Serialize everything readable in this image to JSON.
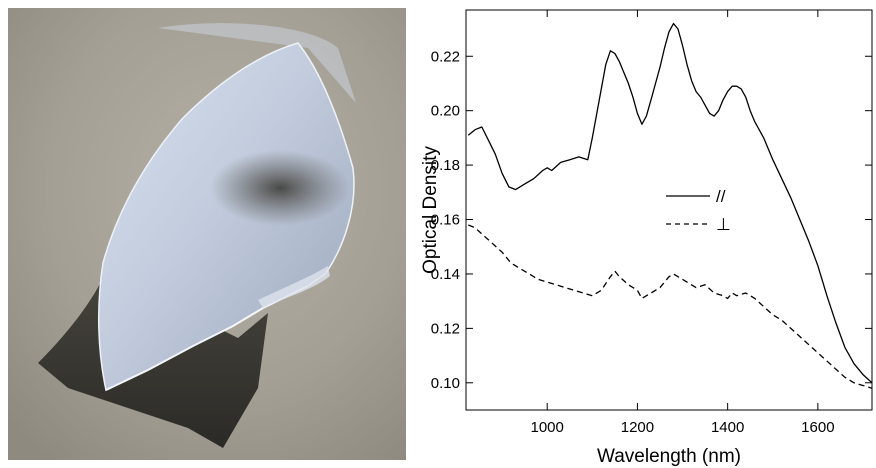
{
  "photo": {
    "subject": "thin translucent film peeling off a dark substrate"
  },
  "chart_data": {
    "type": "line",
    "title": "",
    "xlabel": "Wavelength (nm)",
    "ylabel": "Optical Density",
    "xlim": [
      820,
      1720
    ],
    "ylim": [
      0.09,
      0.237
    ],
    "xticks": [
      1000,
      1200,
      1400,
      1600
    ],
    "xtick_labels": [
      "1000",
      "1200",
      "1400",
      "1600"
    ],
    "yticks": [
      0.1,
      0.12,
      0.14,
      0.16,
      0.18,
      0.2,
      0.22
    ],
    "ytick_labels": [
      "0.10",
      "0.12",
      "0.14",
      "0.16",
      "0.18",
      "0.20",
      "0.22"
    ],
    "grid": false,
    "legend_position": "center-right",
    "series": [
      {
        "name": "//",
        "style": "solid",
        "color": "#000000",
        "x": [
          825,
          840,
          855,
          870,
          885,
          900,
          915,
          930,
          950,
          970,
          990,
          1000,
          1010,
          1030,
          1050,
          1070,
          1090,
          1100,
          1110,
          1120,
          1130,
          1140,
          1150,
          1160,
          1170,
          1180,
          1190,
          1200,
          1210,
          1220,
          1230,
          1240,
          1250,
          1260,
          1270,
          1280,
          1290,
          1300,
          1310,
          1320,
          1330,
          1340,
          1350,
          1360,
          1370,
          1380,
          1390,
          1400,
          1410,
          1420,
          1430,
          1440,
          1450,
          1460,
          1480,
          1500,
          1520,
          1540,
          1560,
          1580,
          1600,
          1620,
          1640,
          1660,
          1680,
          1700,
          1720
        ],
        "y": [
          0.191,
          0.193,
          0.194,
          0.189,
          0.184,
          0.177,
          0.172,
          0.171,
          0.173,
          0.175,
          0.178,
          0.179,
          0.178,
          0.181,
          0.182,
          0.183,
          0.182,
          0.19,
          0.199,
          0.208,
          0.217,
          0.222,
          0.221,
          0.218,
          0.214,
          0.21,
          0.205,
          0.199,
          0.195,
          0.198,
          0.204,
          0.21,
          0.216,
          0.223,
          0.229,
          0.232,
          0.23,
          0.224,
          0.217,
          0.211,
          0.207,
          0.205,
          0.202,
          0.199,
          0.198,
          0.2,
          0.204,
          0.207,
          0.209,
          0.209,
          0.208,
          0.205,
          0.2,
          0.196,
          0.19,
          0.182,
          0.175,
          0.168,
          0.16,
          0.152,
          0.143,
          0.132,
          0.122,
          0.113,
          0.107,
          0.103,
          0.1
        ]
      },
      {
        "name": "⊥",
        "style": "dashed",
        "color": "#000000",
        "x": [
          825,
          840,
          860,
          880,
          900,
          920,
          940,
          960,
          980,
          1000,
          1020,
          1040,
          1060,
          1080,
          1100,
          1120,
          1140,
          1150,
          1160,
          1180,
          1200,
          1210,
          1230,
          1250,
          1270,
          1280,
          1290,
          1310,
          1330,
          1350,
          1370,
          1390,
          1400,
          1410,
          1420,
          1440,
          1460,
          1480,
          1500,
          1520,
          1540,
          1560,
          1580,
          1600,
          1620,
          1640,
          1660,
          1680,
          1700,
          1720
        ],
        "y": [
          0.158,
          0.157,
          0.154,
          0.151,
          0.148,
          0.144,
          0.142,
          0.14,
          0.138,
          0.137,
          0.136,
          0.135,
          0.134,
          0.133,
          0.132,
          0.134,
          0.139,
          0.141,
          0.139,
          0.136,
          0.134,
          0.131,
          0.133,
          0.135,
          0.139,
          0.14,
          0.139,
          0.137,
          0.135,
          0.136,
          0.133,
          0.132,
          0.131,
          0.133,
          0.132,
          0.133,
          0.131,
          0.128,
          0.125,
          0.123,
          0.12,
          0.117,
          0.114,
          0.111,
          0.108,
          0.105,
          0.102,
          0.1,
          0.099,
          0.098
        ]
      }
    ]
  }
}
